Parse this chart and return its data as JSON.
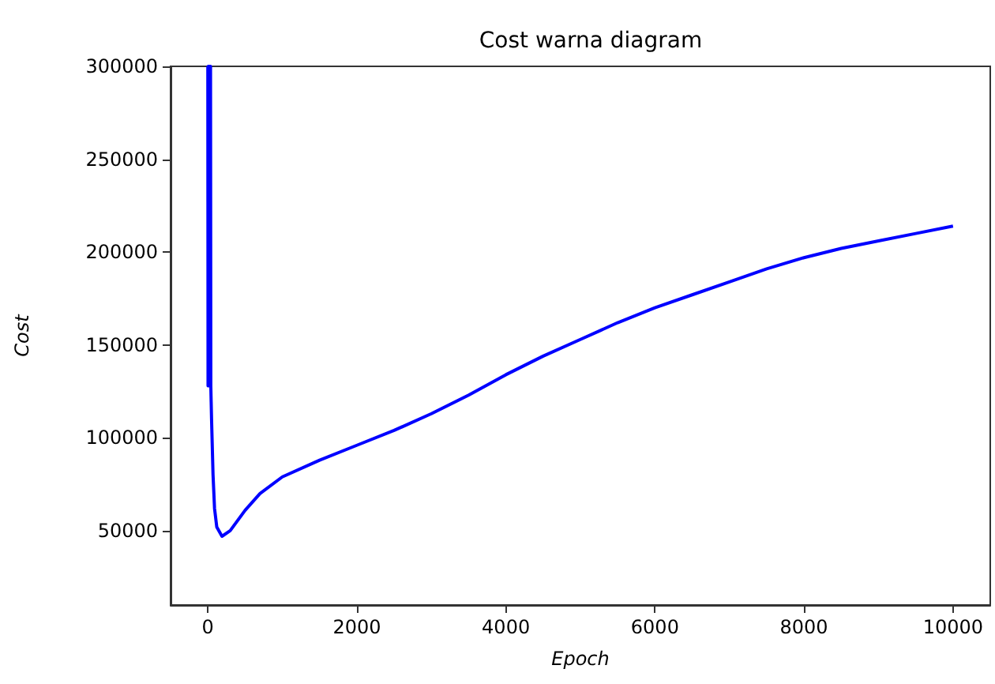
{
  "chart_data": {
    "type": "line",
    "title": "Cost warna diagram",
    "xlabel": "Epoch",
    "ylabel": "Cost",
    "xlim": [
      -500,
      10500
    ],
    "ylim": [
      10000,
      300000
    ],
    "xticks": [
      0,
      2000,
      4000,
      6000,
      8000,
      10000
    ],
    "yticks": [
      50000,
      100000,
      150000,
      200000,
      250000,
      300000
    ],
    "grid": false,
    "marker": "none",
    "line_style": "solid",
    "series": [
      {
        "color": "#0000ff",
        "x": [
          0,
          3,
          6,
          9,
          12,
          15,
          18,
          21,
          24,
          27,
          30,
          33,
          36,
          40,
          45,
          50,
          70,
          90,
          120,
          190,
          300,
          500,
          700,
          1000,
          1500,
          2000,
          2500,
          3000,
          3500,
          4000,
          4500,
          5000,
          5500,
          6000,
          6500,
          7000,
          7500,
          8000,
          8500,
          9000,
          9500,
          10000
        ],
        "values": [
          300000,
          128000,
          300000,
          128000,
          300000,
          128000,
          300000,
          128000,
          300000,
          128000,
          300000,
          128000,
          300000,
          128000,
          128000,
          110000,
          80000,
          62000,
          52000,
          47000,
          50000,
          61000,
          70000,
          79000,
          88000,
          96000,
          104000,
          113000,
          123000,
          134000,
          144000,
          153000,
          162000,
          170000,
          177000,
          184000,
          191000,
          197000,
          202000,
          206000,
          210000,
          214000
        ]
      }
    ]
  }
}
